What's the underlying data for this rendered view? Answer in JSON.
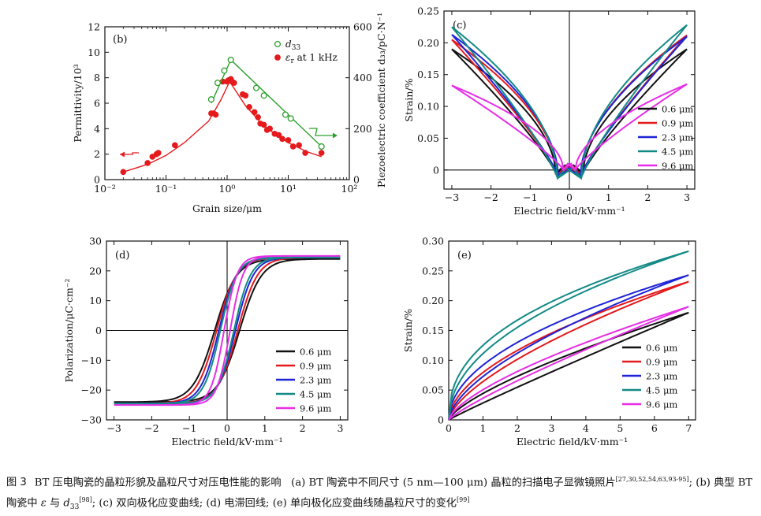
{
  "caption": {
    "label": "图 3",
    "title": "BT 压电陶瓷的晶粒形貌及晶粒尺寸对压电性能的影响",
    "part_a": "(a) BT 陶瓷中不同尺寸 (5 nm—100 μm) 晶粒的扫描电子显微镜照片",
    "ref_a": "[27,30,52,54,63,93-95]",
    "part_b_pre": "; (b) 典型 BT 陶瓷中",
    "epsilon": "ε",
    "and": " 与 ",
    "d": "d",
    "d_sub": "33",
    "ref_b": "[98]",
    "part_cde": "; (c) 双向极化应变曲线; (d) 电滞回线; (e) 单向极化应变曲线随晶粒尺寸的变化",
    "ref_e": "[99]"
  },
  "series_colors": {
    "0.6 μm": "#111111",
    "0.9 μm": "#e41a1c",
    "2.3 μm": "#1f24d6",
    "4.5 μm": "#138a86",
    "9.6 μm": "#e62ee6"
  },
  "chart_data": [
    {
      "id": "b",
      "type": "scatter",
      "panel_label": "(b)",
      "xlabel": "Grain size/μm",
      "ylabel_left": "Permittivity/10³",
      "ylabel_right": "Piezoelectric coefficient d₃₃/pC·N⁻¹",
      "xscale": "log",
      "xlim": [
        0.01,
        100
      ],
      "x_ticks": [
        "10⁻²",
        "10⁻¹",
        "10⁰",
        "10¹",
        "10²"
      ],
      "ylim_left": [
        0,
        12
      ],
      "y_ticks_left": [
        "0",
        "2",
        "4",
        "6",
        "8",
        "10",
        "12"
      ],
      "ylim_right": [
        0,
        600
      ],
      "y_ticks_right": [
        "0",
        "200",
        "400",
        "600"
      ],
      "legend": [
        "d33",
        "εr at 1 kHz"
      ],
      "legend_position": "top-right",
      "series": [
        {
          "name": "εr at 1 kHz",
          "axis": "left",
          "color": "#e41a1c",
          "marker": "filled-circle",
          "x": [
            0.02,
            0.05,
            0.06,
            0.07,
            0.075,
            0.14,
            0.55,
            0.6,
            0.65,
            0.85,
            1.0,
            1.05,
            1.15,
            1.2,
            1.3,
            1.8,
            2.0,
            2.3,
            2.8,
            3.2,
            3.5,
            4.0,
            4.5,
            5.0,
            6.0,
            7.0,
            8.0,
            10.0,
            12.0,
            15.0,
            19.0,
            35.0
          ],
          "values": [
            0.6,
            1.3,
            1.8,
            2.0,
            2.1,
            2.7,
            5.2,
            5.2,
            5.1,
            7.7,
            7.7,
            7.8,
            7.9,
            7.7,
            7.6,
            6.7,
            6.6,
            5.7,
            5.3,
            4.9,
            4.4,
            4.3,
            3.9,
            4.0,
            3.6,
            3.5,
            3.2,
            3.1,
            2.6,
            2.7,
            2.1,
            2.1
          ],
          "fit_x": [
            0.02,
            0.05,
            0.1,
            0.2,
            0.5,
            0.8,
            1.1,
            2.0,
            4.0,
            10.0,
            20.0,
            35.0
          ],
          "fit_y": [
            0.6,
            1.2,
            1.9,
            2.9,
            4.6,
            6.3,
            7.7,
            5.8,
            4.2,
            2.9,
            2.2,
            1.8
          ]
        },
        {
          "name": "d33",
          "axis": "right",
          "color": "#2ca02c",
          "marker": "open-circle",
          "x": [
            0.55,
            0.7,
            0.9,
            1.15,
            3.0,
            4.0,
            9.0,
            11.0,
            35.0
          ],
          "values": [
            315,
            380,
            428,
            470,
            360,
            330,
            255,
            240,
            130
          ],
          "fit_x": [
            0.55,
            1.15,
            35.0
          ],
          "fit_y": [
            300,
            470,
            130
          ]
        }
      ]
    },
    {
      "id": "c",
      "type": "line",
      "panel_label": "(c)",
      "xlabel": "Electric field/kV·mm⁻¹",
      "ylabel": "Strain/%",
      "xlim": [
        -3.2,
        3.2
      ],
      "ylim": [
        -0.03,
        0.25
      ],
      "x_ticks": [
        "−3",
        "−2",
        "−1",
        "0",
        "1",
        "2",
        "3"
      ],
      "y_ticks": [
        "0",
        "0.05",
        "0.10",
        "0.15",
        "0.20",
        "0.25"
      ],
      "legend_position": "lower-right",
      "series": [
        {
          "name": "0.6 μm",
          "max_strain_neg_field": 0.19,
          "max_strain_pos_field": 0.19,
          "min_strain": -0.005,
          "coercive_field": 0.35
        },
        {
          "name": "0.9 μm",
          "max_strain_neg_field": 0.205,
          "max_strain_pos_field": 0.212,
          "min_strain": -0.008,
          "coercive_field": 0.3
        },
        {
          "name": "2.3 μm",
          "max_strain_neg_field": 0.213,
          "max_strain_pos_field": 0.21,
          "min_strain": -0.01,
          "coercive_field": 0.28
        },
        {
          "name": "4.5 μm",
          "max_strain_neg_field": 0.225,
          "max_strain_pos_field": 0.228,
          "min_strain": -0.013,
          "coercive_field": 0.3
        },
        {
          "name": "9.6 μm",
          "max_strain_neg_field": 0.133,
          "max_strain_pos_field": 0.135,
          "min_strain": 0.0,
          "coercive_field": 0.15
        }
      ]
    },
    {
      "id": "d",
      "type": "line",
      "panel_label": "(d)",
      "xlabel": "Electric field/kV·mm⁻¹",
      "ylabel": "Polarization/μC·cm⁻²",
      "xlim": [
        -3.2,
        3.2
      ],
      "ylim": [
        -30,
        30
      ],
      "x_ticks": [
        "−3",
        "−2",
        "−1",
        "0",
        "1",
        "2",
        "3"
      ],
      "y_ticks": [
        "−30",
        "−20",
        "−10",
        "0",
        "10",
        "20",
        "30"
      ],
      "legend_position": "lower-right",
      "series": [
        {
          "name": "0.6 μm",
          "p_max": 24,
          "coercive_field": 0.33
        },
        {
          "name": "0.9 μm",
          "p_max": 24.5,
          "coercive_field": 0.28
        },
        {
          "name": "2.3 μm",
          "p_max": 24.5,
          "coercive_field": 0.22
        },
        {
          "name": "4.5 μm",
          "p_max": 24.5,
          "coercive_field": 0.18
        },
        {
          "name": "9.6 μm",
          "p_max": 25,
          "coercive_field": 0.08
        }
      ]
    },
    {
      "id": "e",
      "type": "line",
      "panel_label": "(e)",
      "xlabel": "Electric field/kV·mm⁻¹",
      "ylabel": "Strain/%",
      "xlim": [
        0,
        7.2
      ],
      "ylim": [
        0,
        0.3
      ],
      "x_ticks": [
        "0",
        "1",
        "2",
        "3",
        "4",
        "5",
        "6",
        "7"
      ],
      "y_ticks": [
        "0",
        "0.05",
        "0.10",
        "0.15",
        "0.20",
        "0.25",
        "0.30"
      ],
      "legend_position": "lower-right",
      "series": [
        {
          "name": "0.6 μm",
          "max_strain": 0.18
        },
        {
          "name": "0.9 μm",
          "max_strain": 0.232
        },
        {
          "name": "2.3 μm",
          "max_strain": 0.243
        },
        {
          "name": "4.5 μm",
          "max_strain": 0.283
        },
        {
          "name": "9.6 μm",
          "max_strain": 0.19
        }
      ]
    }
  ]
}
